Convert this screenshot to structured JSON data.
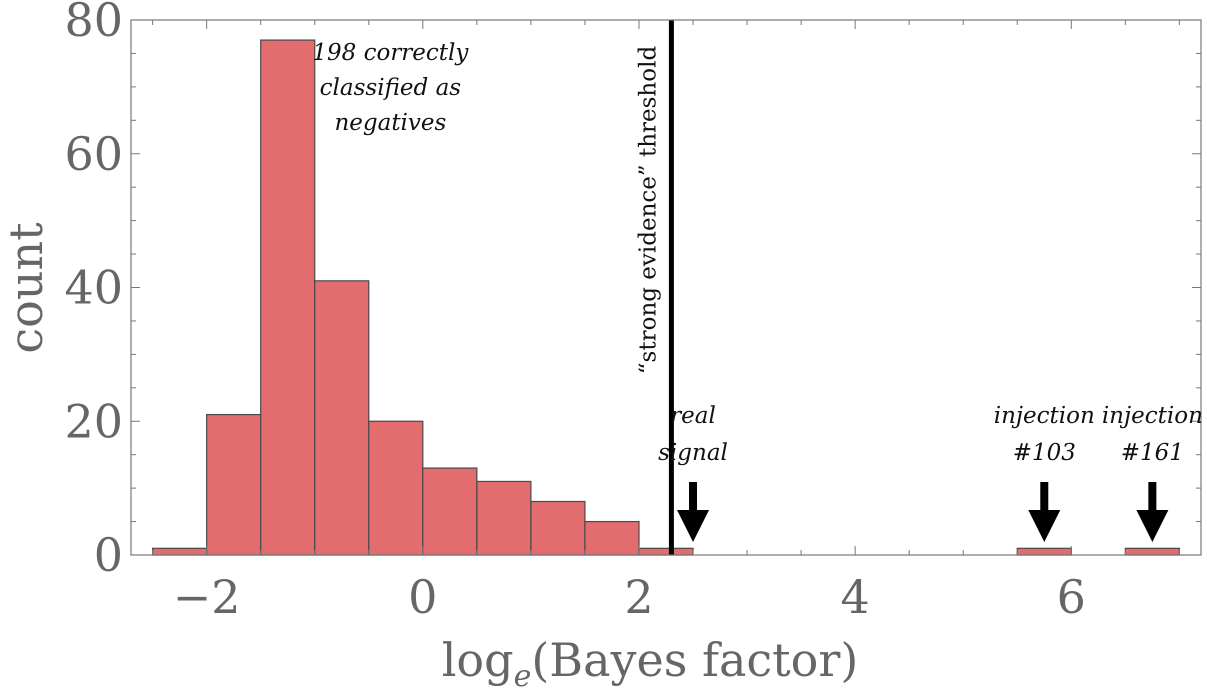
{
  "chart_data": {
    "type": "bar",
    "xlabel": "log",
    "xlabel_sub": "e",
    "xlabel_rest": "(Bayes factor)",
    "ylabel": "count",
    "xlim": [
      -2.7,
      7.2
    ],
    "ylim": [
      0,
      80
    ],
    "x_ticks": [
      -2,
      0,
      2,
      4,
      6
    ],
    "x_tick_labels": [
      "−2",
      "0",
      "2",
      "4",
      "6"
    ],
    "y_ticks": [
      0,
      20,
      40,
      60,
      80
    ],
    "y_tick_labels": [
      "0",
      "20",
      "40",
      "60",
      "80"
    ],
    "grid": false,
    "bar_color": "#e36c6f",
    "bins": [
      {
        "x0": -2.5,
        "x1": -2.0,
        "count": 1
      },
      {
        "x0": -2.0,
        "x1": -1.5,
        "count": 21
      },
      {
        "x0": -1.5,
        "x1": -1.0,
        "count": 77
      },
      {
        "x0": -1.0,
        "x1": -0.5,
        "count": 41
      },
      {
        "x0": -0.5,
        "x1": 0.0,
        "count": 20
      },
      {
        "x0": 0.0,
        "x1": 0.5,
        "count": 13
      },
      {
        "x0": 0.5,
        "x1": 1.0,
        "count": 11
      },
      {
        "x0": 1.0,
        "x1": 1.5,
        "count": 8
      },
      {
        "x0": 1.5,
        "x1": 2.0,
        "count": 5
      },
      {
        "x0": 2.0,
        "x1": 2.5,
        "count": 1
      },
      {
        "x0": 5.5,
        "x1": 6.0,
        "count": 1
      },
      {
        "x0": 6.5,
        "x1": 7.0,
        "count": 1
      }
    ],
    "threshold": {
      "x": 2.3,
      "label": "“strong evidence” threshold"
    },
    "annotations": [
      {
        "lines": [
          "198 correctly",
          "classified as",
          "negatives"
        ],
        "x": -0.3,
        "y": 70
      }
    ],
    "arrows": [
      {
        "x": 2.5,
        "lines": [
          "real",
          "signal"
        ]
      },
      {
        "x": 5.75,
        "lines": [
          "injection",
          "#103"
        ]
      },
      {
        "x": 6.75,
        "lines": [
          "injection",
          "#161"
        ]
      }
    ]
  }
}
